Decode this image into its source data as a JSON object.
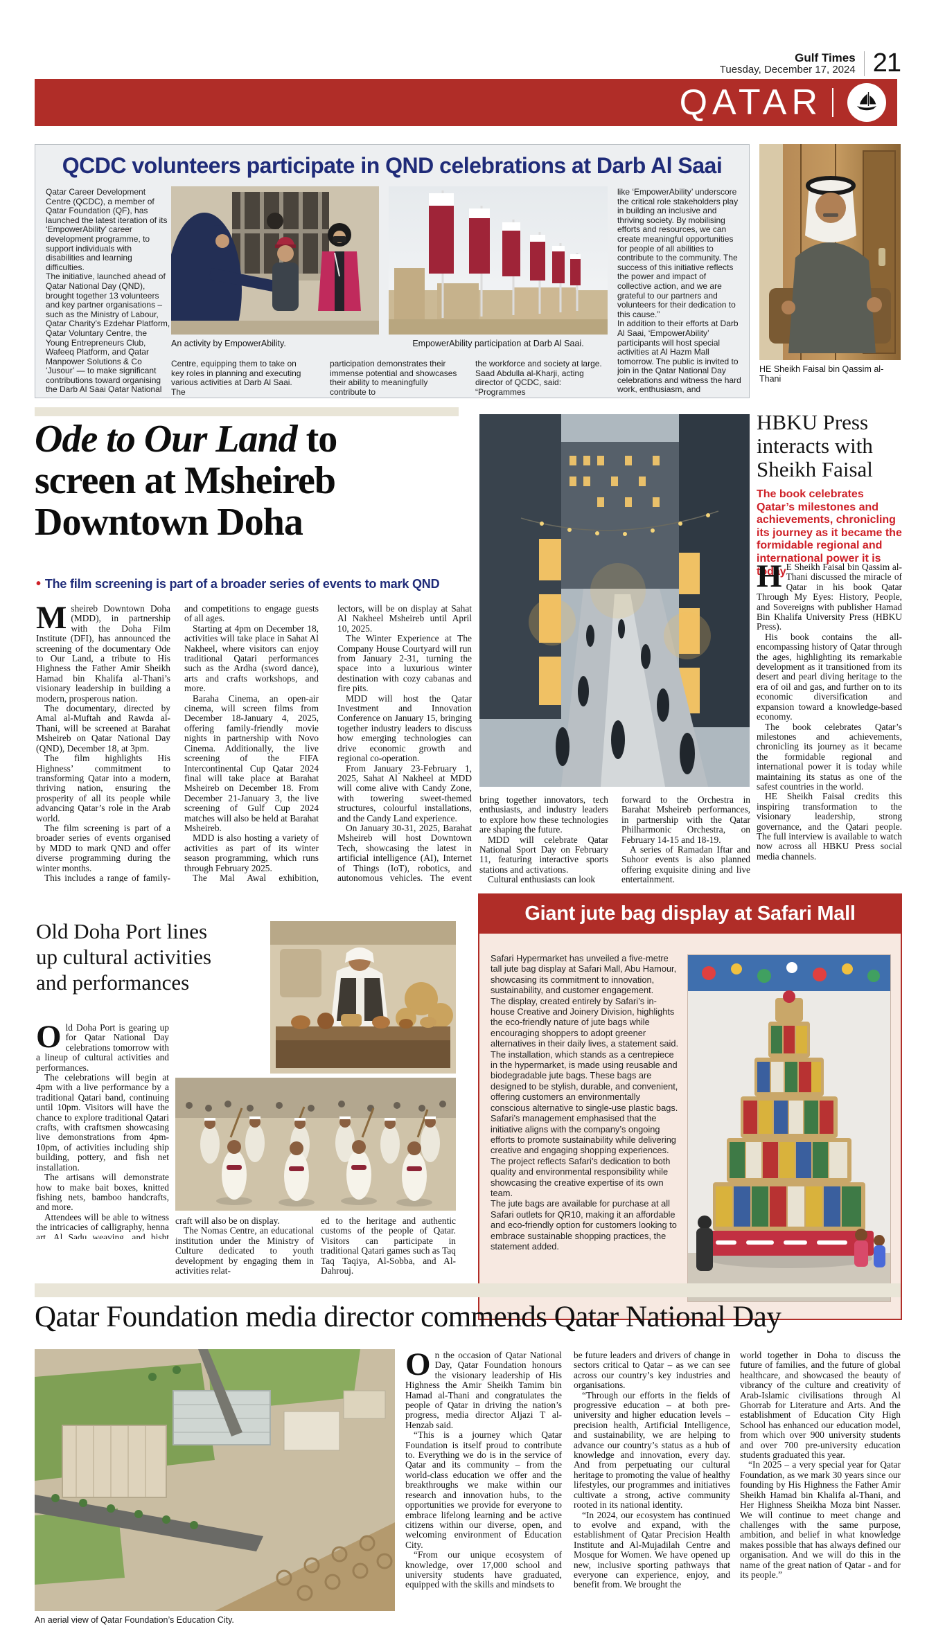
{
  "page": {
    "masthead": "Gulf Times",
    "date": "Tuesday, December 17, 2024",
    "page_number": "21",
    "section": "QATAR"
  },
  "colors": {
    "banner_red": "#b02d28",
    "navy": "#1f2b78",
    "standfirst_red": "#ce2027",
    "box_gray": "#edeff1",
    "safari_pink": "#f7e9e1",
    "beige_bar": "#e9e5d7"
  },
  "qcdc": {
    "headline": "QCDC volunteers participate in QND celebrations at Darb Al Saai",
    "col1": [
      "Qatar Career Development Centre (QCDC), a member of Qatar Foundation (QF), has launched the latest iteration of its ‘EmpowerAbility’ career development programme, to support individuals with disabilities and learning difficulties.",
      "The initiative, launched ahead of Qatar National Day (QND), brought together 13 volunteers and key partner organisations – such as the Ministry of Labour, Qatar Charity’s Ezdehar Platform, Qatar Voluntary Centre, the Young Entrepreneurs Club, Wafeeq Platform, and Qatar Manpower Solutions & Co ‘Jusour’ — to make significant contributions toward organising the Darb Al Saai Qatar National Day activations. Participants received specialised training from the Qatar Voluntary"
    ],
    "caption1": "An activity by EmpowerAbility.",
    "caption2": "EmpowerAbility participation at Darb Al Saai.",
    "colA": "Centre, equipping them to take on key roles in planning and executing various activities at Darb Al Saai. The",
    "colB": "participation demonstrates their immense potential and showcases their ability to meaningfully contribute to",
    "colC": "the workforce and society at large. Saad Abdulla al-Kharji, acting director of QCDC, said: “Programmes",
    "col_right": [
      "like ‘EmpowerAbility’ underscore the critical role stakeholders play in building an inclusive and thriving society. By mobilising efforts and resources, we can create meaningful opportunities for people of all abilities to contribute to the community. The success of this initiative reflects the power and impact of collective action, and we are grateful to our partners and volunteers for their dedication to this cause.”",
      "In addition to their efforts at Darb Al Saai, ‘EmpowerAbility’ participants will host special activities at Al Hazm Mall tomorrow. The public is invited to join in the Qatar National Day celebrations and witness the hard work, enthusiasm, and commitment of the volunteers firsthand."
    ],
    "sheikh_caption": "HE Sheikh Faisal bin Qassim al-Thani"
  },
  "ode": {
    "headline_italic": "Ode to Our Land",
    "headline_rest": " to screen at Msheireb Downtown Doha",
    "bullet": "•",
    "standfirst": "The film screening is part of a broader series of events to mark QND",
    "dropcap": "M",
    "col1": [
      "sheireb Downtown Doha (MDD), in partnership with the Doha Film Institute (DFI), has announced the screening of the documentary Ode to Our Land, a tribute to His Highness the Father Amir Sheikh Hamad bin Khalifa al-Thani’s visionary leadership in building a modern, prosperous nation.",
      "The documentary, directed by Amal al-Muftah and Rawda al-Thani, will be screened at Barahat Msheireb on Qatar National Day (QND), December 18, at 3pm.",
      "The film highlights His Highness’ commitment to transforming Qatar into a modern, thriving nation, ensuring the prosperity of all its people while advancing Qatar’s role in the Arab world.",
      "The film screening is part of a broader series of events organised by MDD to mark QND and offer diverse programming during the winter months.",
      "This includes a range of family-friendly activities, performances,"
    ],
    "col2": [
      "and competitions to engage guests of all ages.",
      "Starting at 4pm on December 18, activities will take place in Sahat Al Nakheel, where visitors can enjoy traditional Qatari performances such as the Ardha (sword dance), arts and crafts workshops, and more.",
      "Baraha Cinema, an open-air cinema, will screen films from December 18-January 4, 2025, offering family-friendly movie nights in partnership with Novo Cinema. Additionally, the live screening of the FIFA Intercontinental Cup Qatar 2024 final will take place at Barahat Msheireb on December 18. From December 21-January 3, the live screening of Gulf Cup 2024 matches will also be held at Barahat Msheireb.",
      "MDD is also hosting a variety of activities as part of its winter season programming, which runs through February 2025.",
      "The Mal Awal exhibition, showcasing the history of video games from the perspective of local col-"
    ],
    "col3": [
      "lectors, will be on display at Sahat Al Nakheel Msheireb until April 10, 2025.",
      "The Winter Experience at The Company House Courtyard will run from January 2-31, turning the space into a luxurious winter destination with cozy cabanas and fire pits.",
      "MDD will host the Qatar Investment and Innovation Conference on January 15, bringing together industry leaders to discuss how emerging technologies can drive economic growth and regional co-operation.",
      "From January 23-February 1, 2025, Sahat Al Nakheel at MDD will come alive with Candy Zone, with towering sweet-themed structures, colourful installations, and the Candy Land experience.",
      "On January 30-31, 2025, Barahat Msheireb will host Downtown Tech, showcasing the latest in artificial intelligence (AI), Internet of Things (IoT), robotics, and autonomous vehicles. The event will"
    ],
    "col4": [
      "bring together innovators, tech enthusiasts, and industry leaders to explore how these technologies are shaping the future.",
      "MDD will celebrate Qatar National Sport Day on February 11, featuring interactive sports stations and activations.",
      "Cultural enthusiasts can look"
    ],
    "col5": [
      "forward to the Orchestra in Barahat Msheireb performances, in partnership with the Qatar Philharmonic Orchestra, on February 14-15 and 18-19.",
      "A series of Ramadan Iftar and Suhoor events is also planned offering exquisite dining and live entertainment."
    ]
  },
  "hbku": {
    "headline": "HBKU Press interacts with Sheikh Faisal",
    "standfirst": "The book celebrates Qatar’s milestones and achievements, chronicling its journey as it became the formidable regional and international power it is today",
    "dropcap": "H",
    "body": [
      "E Sheikh Faisal bin Qassim al-Thani discussed the miracle of Qatar in his book Qatar Through My Eyes: History, People, and Sovereigns with publisher Hamad Bin Khalifa University Press (HBKU Press).",
      "His book contains the all-encompassing history of Qatar through the ages, highlighting its remarkable development as it transitioned from its desert and pearl diving heritage to the era of oil and gas, and further on to its economic diversification and expansion toward a knowledge-based economy.",
      "The book celebrates Qatar’s milestones and achievements, chronicling its journey as it became the formidable regional and international power it is today while maintaining its status as one of the safest countries in the world.",
      "HE Sheikh Faisal credits this inspiring transformation to the visionary leadership, strong governance, and the Qatari people. The full interview is available to watch now across all HBKU Press social media channels."
    ]
  },
  "old_doha": {
    "headline": "Old Doha Port lines up cultural activities and performances",
    "dropcap": "O",
    "col1": [
      "ld Doha Port is gearing up for Qatar National Day celebrations tomorrow with a lineup of cultural activities and performances.",
      "The celebrations will begin at 4pm with a live performance by a traditional Qatari band, continuing until 10pm. Visitors will have the chance to explore traditional Qatari crafts, with craftsmen showcasing live demonstrations from 4pm-10pm, of activities including ship building, pottery, and fish net installation.",
      "The artisans will demonstrate how to make bait boxes, knitted fishing nets, bamboo handcrafts, and more.",
      "Attendees will be able to witness the intricacies of calligraphy, henna art, Al Sadu weaving, and bisht embroidery. Gypsum carving and hay handi-"
    ],
    "col2": [
      "craft will also be on display.",
      "The Nomas Centre, an educational institution under the Ministry of Culture dedicated to youth development by engaging them in activities relat-"
    ],
    "col3": [
      "ed to the heritage and authentic customs of the people of Qatar. Visitors can participate in traditional Qatari games such as Taq Taq Taqiya, Al-Sobba, and Al-Dahrouj."
    ]
  },
  "safari": {
    "headline": "Giant jute bag display at Safari Mall",
    "body": [
      "Safari Hypermarket has unveiled a five-metre tall jute bag display at Safari Mall, Abu Hamour, showcasing its commitment to innovation, sustainability, and customer engagement.",
      "The display, created entirely by Safari’s in-house Creative and Joinery Division, highlights the eco-friendly nature of jute bags while encouraging shoppers to adopt greener alternatives in their daily lives, a statement said.",
      "The installation, which stands as a centrepiece in the hypermarket, is made using reusable and biodegradable jute bags. These bags are designed to be stylish, durable, and convenient, offering customers an environmentally conscious alternative to single-use plastic bags.",
      "Safari’s management emphasised that the initiative aligns with the company’s ongoing efforts to promote sustainability while delivering creative and engaging shopping experiences.",
      "The project reflects Safari’s dedication to both quality and environmental responsibility while showcasing the creative expertise of its own team.",
      "The jute bags are available for purchase at all Safari outlets for QR10, making it an affordable and eco-friendly option for customers looking to embrace sustainable shopping practices, the statement added."
    ]
  },
  "qf": {
    "headline": "Qatar Foundation media director commends Qatar National Day",
    "caption": "An aerial view of Qatar Foundation’s Education City.",
    "dropcap": "O",
    "col1": [
      "n the occasion of Qatar National Day, Qatar Foundation honours the visionary leadership of His Highness the Amir Sheikh Tamim bin Hamad al-Thani and congratulates the people of Qatar in driving the nation’s progress, media director Aljazi T al-Henzab said.",
      "“This is a journey which Qatar Foundation is itself proud to contribute to. Everything we do is in the service of Qatar and its community – from the world-class education we offer and the breakthroughs we make within our research and innovation hubs, to the opportunities we provide for everyone to embrace lifelong learning and be active citizens within our diverse, open, and welcoming environment of Education City.",
      "“From our unique ecosystem of knowledge, over 17,000 school and university students have graduated, equipped with the skills and mindsets to"
    ],
    "col2": [
      "be future leaders and drivers of change in sectors critical to Qatar – as we can see across our country’s key industries and organisations.",
      "“Through our efforts in the fields of progressive education – at both pre-university and higher education levels – precision health, Artificial Intelligence, and sustainability, we are helping to advance our country’s status as a hub of knowledge and innovation, every day. And from perpetuating our cultural heritage to promoting the value of healthy lifestyles, our programmes and initiatives cultivate a strong, active community rooted in its national identity.",
      "“In 2024, our ecosystem has continued to evolve and expand, with the establishment of Qatar Precision Health Institute and Al-Mujadilah Centre and Mosque for Women. We have opened up new, inclusive sporting pathways that everyone can experience, enjoy, and benefit from. We brought the"
    ],
    "col3": [
      "world together in Doha to discuss the future of families, and the future of global healthcare, and showcased the beauty of vibrancy of the culture and creativity of Arab-Islamic civilisations through Al Ghorrab for Literature and Arts. And the establishment of Education City High School has enhanced our education model, from which over 900 university students and over 700 pre-university education students graduated this year.",
      "“In 2025 – a very special year for Qatar Foundation, as we mark 30 years since our founding by His Highness the Father Amir Sheikh Hamad bin Khalifa al-Thani, and Her Highness Sheikha Moza bint Nasser. We will continue to meet change and challenges with the same purpose, ambition, and belief in what knowledge makes possible that has always defined our organisation. And we will do this in the name of the great nation of Qatar - and for its people.”"
    ]
  }
}
